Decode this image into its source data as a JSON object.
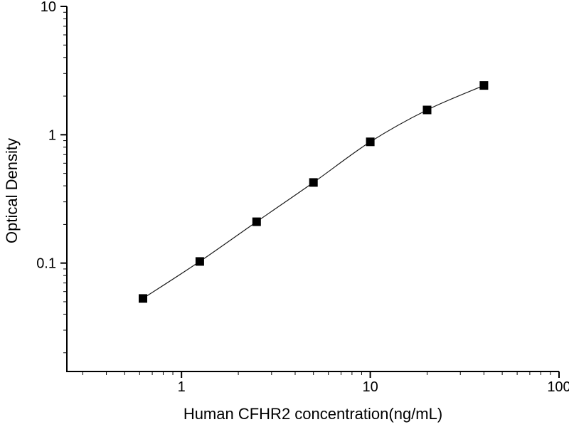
{
  "chart": {
    "background_color": "#ffffff",
    "axis_color": "#000000",
    "marker_color": "#000000",
    "curve_color": "#1a1a1a",
    "text_color": "#000000"
  },
  "chart_data": {
    "type": "scatter",
    "title": "",
    "xlabel": "Human CFHR2 concentration(ng/mL)",
    "ylabel": "Optical Density",
    "xscale": "log",
    "yscale": "log",
    "xlim": [
      0.247,
      100
    ],
    "ylim": [
      0.0143,
      10
    ],
    "x_major_ticks": [
      1,
      10,
      100
    ],
    "x_tick_labels": [
      "1",
      "10",
      "100"
    ],
    "y_major_ticks": [
      0.1,
      1,
      10
    ],
    "y_tick_labels": [
      "0.1",
      "1",
      "10"
    ],
    "grid": "off",
    "legend": "none",
    "marker": "filled-square",
    "line": "smooth",
    "x": [
      0.625,
      1.25,
      2.5,
      5,
      10,
      20,
      40
    ],
    "y": [
      0.053,
      0.103,
      0.21,
      0.425,
      0.88,
      1.56,
      2.42
    ]
  }
}
